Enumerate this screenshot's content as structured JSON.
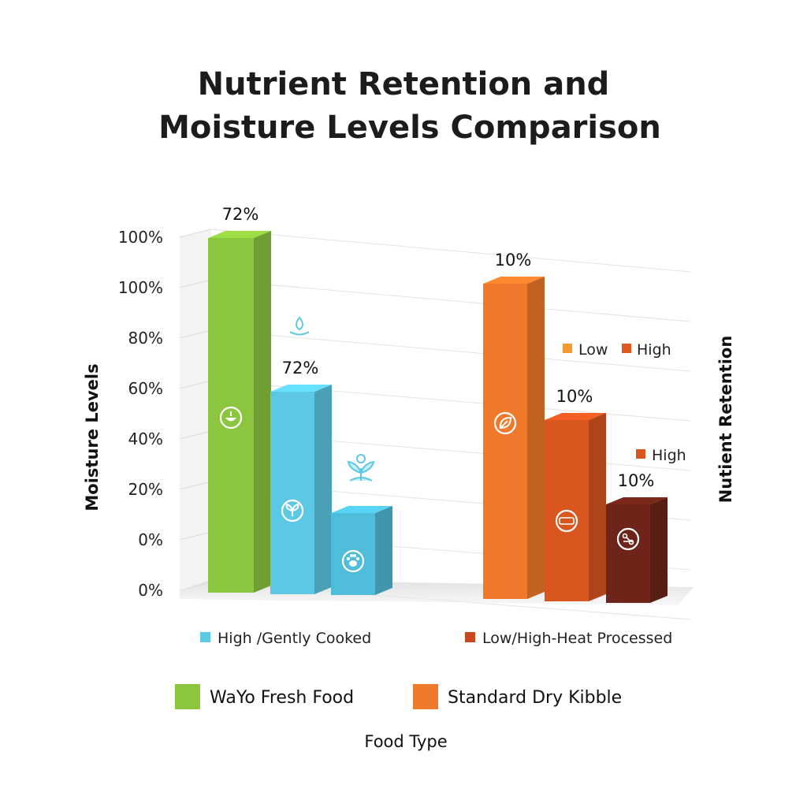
{
  "chart_data": {
    "type": "bar",
    "title_lines": [
      "Nutrient Retention and",
      "Moisture Levels Comparison"
    ],
    "xlabel": "Food Type",
    "ylabel_left": "Moisture Levels",
    "ylabel_right": "Nutient Retention",
    "y_tick_labels": [
      "100%",
      "100%",
      "80%",
      "60%",
      "40%",
      "20%",
      "0%",
      "0%"
    ],
    "ylim": [
      0,
      100
    ],
    "grid": true,
    "groups": [
      {
        "name": "WaYo Fresh Food",
        "legend_color": "#8cc63f",
        "bars": [
          {
            "value": 100,
            "label": "72%",
            "color": "#8cc63f",
            "icon": "bowl-icon"
          },
          {
            "value": 68,
            "label": "72%",
            "color": "#5dc8e4",
            "icon": "sprout-icon",
            "top_icon": "water-drop-icon"
          },
          {
            "value": 30,
            "label": "",
            "color": "#4fbcd9",
            "icon": "paw-icon",
            "top_icon": "leaf-sprout-icon"
          }
        ],
        "sub_legend": {
          "label": "High /Gently Cooked",
          "color": "#5dc8e4"
        }
      },
      {
        "name": "Standard Dry Kibble",
        "legend_color": "#f07a2b",
        "bars": [
          {
            "value": 100,
            "label": "10%",
            "color": "#f07a2b",
            "icon": "leaf-icon"
          },
          {
            "value": 55,
            "label": "10%",
            "color": "#d9561f",
            "icon": "badge-icon"
          },
          {
            "value": 30,
            "label": "10%",
            "color": "#6e2418",
            "icon": "molecule-icon"
          }
        ],
        "sub_legend": {
          "label": "Low/High-Heat Processed",
          "color": "#c8481c"
        }
      }
    ],
    "inline_legends": [
      {
        "items": [
          {
            "label": "Low",
            "color": "#f39a2e"
          },
          {
            "label": "High",
            "color": "#e0581f"
          }
        ]
      },
      {
        "items": [
          {
            "label": "High",
            "color": "#d9561f"
          }
        ]
      }
    ]
  }
}
